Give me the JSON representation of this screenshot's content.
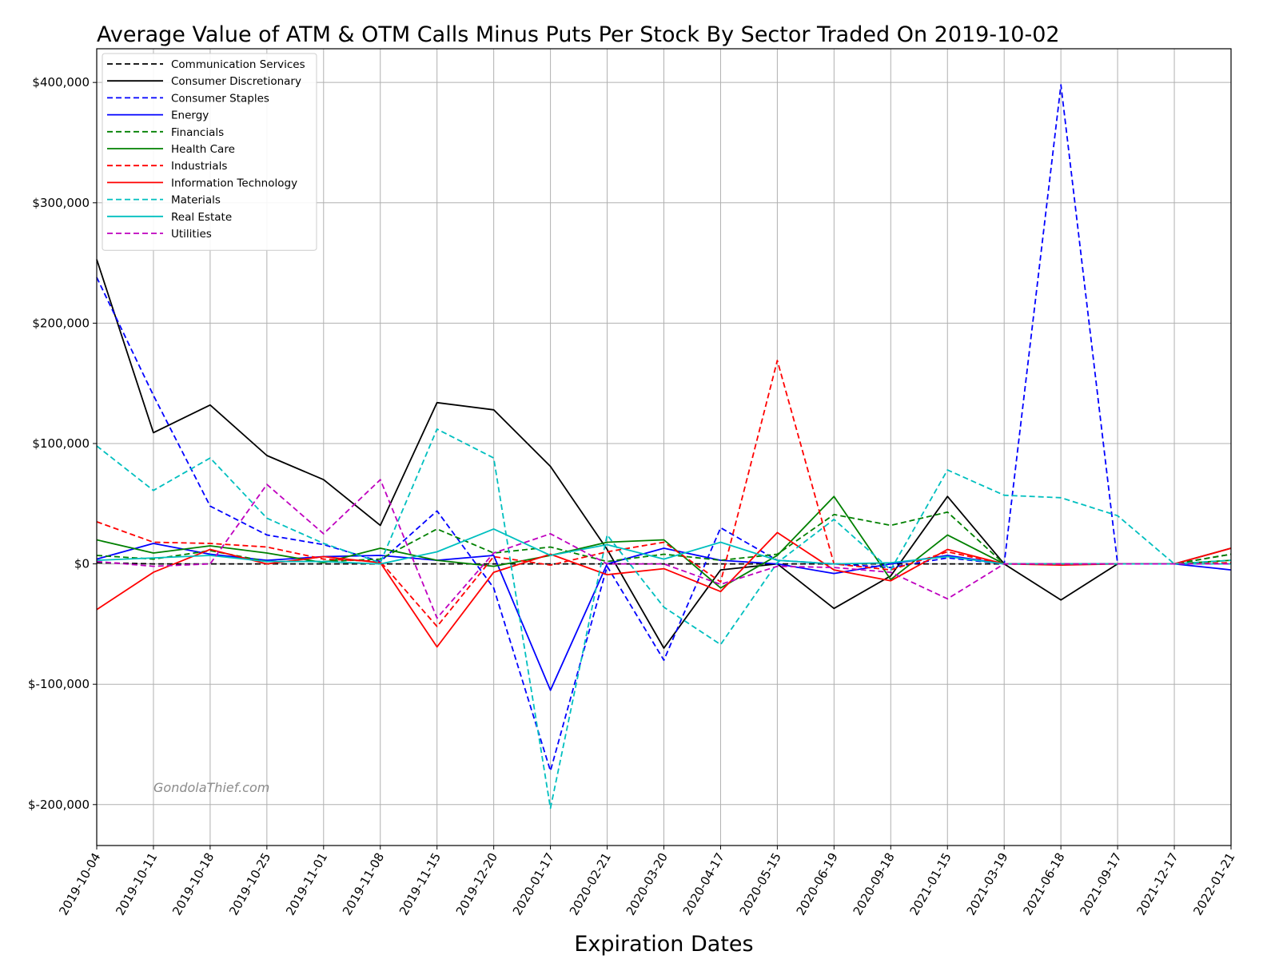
{
  "chart_data": {
    "type": "line",
    "title": "Average Value of ATM & OTM Calls Minus Puts Per Stock By Sector Traded On 2019-10-02",
    "xlabel": "Expiration Dates",
    "ylabel": "",
    "ylim": [
      -234000,
      428000
    ],
    "yticks": [
      400000,
      300000,
      200000,
      100000,
      0,
      -100000,
      -200000
    ],
    "ytick_labels": [
      "$400,000",
      "$300,000",
      "$200,000",
      "$100,000",
      "$0",
      "$-100,000",
      "$-200,000"
    ],
    "grid": true,
    "legend_position": "top-left",
    "watermark": "GondolaThief.com",
    "categories": [
      "2019-10-04",
      "2019-10-11",
      "2019-10-18",
      "2019-10-25",
      "2019-11-01",
      "2019-11-08",
      "2019-11-15",
      "2019-12-20",
      "2020-01-17",
      "2020-02-21",
      "2020-03-20",
      "2020-04-17",
      "2020-05-15",
      "2020-06-19",
      "2020-09-18",
      "2021-01-15",
      "2021-03-19",
      "2021-06-18",
      "2021-09-17",
      "2021-12-17",
      "2022-01-21"
    ],
    "series": [
      {
        "name": "Communication Services",
        "color": "#000000",
        "dash": true,
        "values": [
          1000,
          0,
          0,
          0,
          0,
          0,
          0,
          0,
          0,
          0,
          0,
          0,
          0,
          0,
          0,
          0,
          0,
          0,
          0,
          0,
          8000
        ]
      },
      {
        "name": "Consumer Discretionary",
        "color": "#000000",
        "dash": false,
        "values": [
          253000,
          109000,
          132000,
          90000,
          70000,
          32000,
          134000,
          128000,
          81000,
          12000,
          -70000,
          -5000,
          0,
          -37000,
          -10000,
          56000,
          0,
          -30000,
          0,
          0,
          13000
        ]
      },
      {
        "name": "Consumer Staples",
        "color": "#0000ff",
        "dash": true,
        "values": [
          238000,
          140000,
          48000,
          24000,
          16000,
          2000,
          44000,
          -20000,
          -172000,
          -2000,
          -80000,
          30000,
          3000,
          0,
          -3000,
          5000,
          0,
          398000,
          0,
          0,
          0
        ]
      },
      {
        "name": "Energy",
        "color": "#0000ff",
        "dash": false,
        "values": [
          4000,
          17000,
          8000,
          3000,
          6000,
          7000,
          3000,
          7000,
          -105000,
          0,
          13000,
          3000,
          0,
          -8000,
          0,
          7000,
          0,
          0,
          0,
          0,
          -5000
        ]
      },
      {
        "name": "Financials",
        "color": "#008000",
        "dash": true,
        "values": [
          7000,
          4000,
          11000,
          2000,
          2000,
          4000,
          29000,
          9000,
          14000,
          2000,
          8000,
          3000,
          8000,
          41000,
          32000,
          43000,
          0,
          0,
          0,
          0,
          8000
        ]
      },
      {
        "name": "Health Care",
        "color": "#008000",
        "dash": false,
        "values": [
          20000,
          9000,
          15000,
          9000,
          1000,
          13000,
          3000,
          -2000,
          7000,
          18000,
          20000,
          -20000,
          7000,
          56000,
          -13000,
          24000,
          0,
          0,
          0,
          0,
          3000
        ]
      },
      {
        "name": "Industrials",
        "color": "#ff0000",
        "dash": true,
        "values": [
          35000,
          18000,
          17000,
          14000,
          4000,
          2000,
          -52000,
          6000,
          -1000,
          10000,
          18000,
          -15000,
          169000,
          0,
          -5000,
          10000,
          0,
          0,
          0,
          0,
          1000
        ]
      },
      {
        "name": "Information Technology",
        "color": "#ff0000",
        "dash": false,
        "values": [
          -38000,
          -7000,
          12000,
          0,
          6000,
          1000,
          -69000,
          -7000,
          8000,
          -9000,
          -4000,
          -23000,
          26000,
          -5000,
          -14000,
          12000,
          0,
          -1000,
          0,
          0,
          13000
        ]
      },
      {
        "name": "Materials",
        "color": "#00bfbf",
        "dash": true,
        "values": [
          98000,
          61000,
          88000,
          38000,
          17000,
          1000,
          112000,
          88000,
          -203000,
          24000,
          -36000,
          -67000,
          1000,
          37000,
          -5000,
          78000,
          57000,
          55000,
          40000,
          0,
          3000
        ]
      },
      {
        "name": "Real Estate",
        "color": "#00bfbf",
        "dash": false,
        "values": [
          3000,
          5000,
          7000,
          2000,
          2000,
          0,
          10000,
          29000,
          7000,
          16000,
          4000,
          18000,
          3000,
          0,
          1000,
          6000,
          0,
          0,
          0,
          0,
          0
        ]
      },
      {
        "name": "Utilities",
        "color": "#bf00bf",
        "dash": true,
        "values": [
          2000,
          -2000,
          0,
          66000,
          25000,
          70000,
          -45000,
          9000,
          25000,
          0,
          0,
          -17000,
          -2000,
          -3000,
          -7000,
          -29000,
          0,
          0,
          0,
          0,
          0
        ]
      }
    ]
  }
}
